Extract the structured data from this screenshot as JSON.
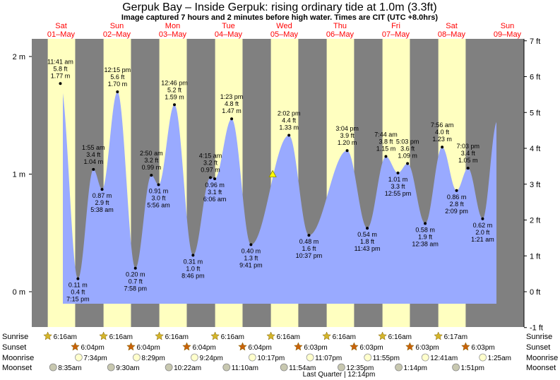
{
  "title": "Gerpuk Bay – Inside Gerpuk: rising  ordinary tide at 1.0m (3.3ft)",
  "subtitle": "Image captured 7 hours and 2 minutes before high water. Times are CIT (UTC +8.0hrs)",
  "colors": {
    "day": "#ffffc0",
    "night": "#808080",
    "tide": "#99aaff",
    "day_label": "#ff0000"
  },
  "chart_data": {
    "type": "area",
    "ylim_m": [
      -0.2,
      2.1
    ],
    "left_axis": {
      "unit": "m",
      "ticks": [
        {
          "v": 0,
          "label": "0 m"
        },
        {
          "v": 1,
          "label": "1 m"
        },
        {
          "v": 2,
          "label": "2 m"
        }
      ]
    },
    "right_axis": {
      "unit": "ft",
      "ticks": [
        "-1 ft",
        "0 ft",
        "1 ft",
        "2 ft",
        "3 ft",
        "4 ft",
        "5 ft",
        "6 ft",
        "7 ft"
      ]
    },
    "days": [
      {
        "dow": "Sat",
        "date": "01–May"
      },
      {
        "dow": "Sun",
        "date": "02–May"
      },
      {
        "dow": "Mon",
        "date": "03–May"
      },
      {
        "dow": "Tue",
        "date": "04–May"
      },
      {
        "dow": "Wed",
        "date": "05–May"
      },
      {
        "dow": "Thu",
        "date": "06–May"
      },
      {
        "dow": "Fri",
        "date": "07–May"
      },
      {
        "dow": "Sat",
        "date": "08–May"
      },
      {
        "dow": "Sun",
        "date": "09–May"
      }
    ],
    "extremes": [
      {
        "type": "high",
        "time": "11:41 am",
        "ft": "5.8 ft",
        "m": "1.77 m",
        "h": 1.77,
        "day": 0
      },
      {
        "type": "low",
        "time": "7:15 pm",
        "ft": "0.4 ft",
        "m": "0.11 m",
        "h": 0.11,
        "day": 0
      },
      {
        "type": "high",
        "time": "1:55 am",
        "ft": "3.4 ft",
        "m": "1.04 m",
        "h": 1.04,
        "day": 1
      },
      {
        "type": "low",
        "time": "5:38 am",
        "ft": "2.9 ft",
        "m": "0.87 m",
        "h": 0.87,
        "day": 1
      },
      {
        "type": "high",
        "time": "12:15 pm",
        "ft": "5.6 ft",
        "m": "1.70 m",
        "h": 1.7,
        "day": 1
      },
      {
        "type": "low",
        "time": "7:58 pm",
        "ft": "0.7 ft",
        "m": "0.20 m",
        "h": 0.2,
        "day": 1
      },
      {
        "type": "high",
        "time": "2:50 am",
        "ft": "3.2 ft",
        "m": "0.99 m",
        "h": 0.99,
        "day": 2
      },
      {
        "type": "low",
        "time": "5:56 am",
        "ft": "3.0 ft",
        "m": "0.91 m",
        "h": 0.91,
        "day": 2
      },
      {
        "type": "high",
        "time": "12:46 pm",
        "ft": "5.2 ft",
        "m": "1.59 m",
        "h": 1.59,
        "day": 2
      },
      {
        "type": "low",
        "time": "8:46 pm",
        "ft": "1.0 ft",
        "m": "0.31 m",
        "h": 0.31,
        "day": 2
      },
      {
        "type": "high",
        "time": "4:15 am",
        "ft": "3.2 ft",
        "m": "0.97 m",
        "h": 0.97,
        "day": 3
      },
      {
        "type": "low",
        "time": "6:06 am",
        "ft": "3.1 ft",
        "m": "0.96 m",
        "h": 0.96,
        "day": 3
      },
      {
        "type": "high",
        "time": "1:23 pm",
        "ft": "4.8 ft",
        "m": "1.47 m",
        "h": 1.47,
        "day": 3
      },
      {
        "type": "low",
        "time": "9:41 pm",
        "ft": "1.3 ft",
        "m": "0.40 m",
        "h": 0.4,
        "day": 3
      },
      {
        "type": "high",
        "time": "2:02 pm",
        "ft": "4.4 ft",
        "m": "1.33 m",
        "h": 1.33,
        "day": 4
      },
      {
        "type": "low",
        "time": "10:37 pm",
        "ft": "1.6 ft",
        "m": "0.48 m",
        "h": 0.48,
        "day": 4
      },
      {
        "type": "high",
        "time": "3:04 pm",
        "ft": "3.9 ft",
        "m": "1.20 m",
        "h": 1.2,
        "day": 5
      },
      {
        "type": "low",
        "time": "11:43 pm",
        "ft": "1.8 ft",
        "m": "0.54 m",
        "h": 0.54,
        "day": 5
      },
      {
        "type": "high",
        "time": "7:44 am",
        "ft": "3.8 ft",
        "m": "1.15 m",
        "h": 1.15,
        "day": 6
      },
      {
        "type": "low",
        "time": "12:55 pm",
        "ft": "3.3 ft",
        "m": "1.01 m",
        "h": 1.01,
        "day": 6
      },
      {
        "type": "high",
        "time": "5:03 pm",
        "ft": "3.6 ft",
        "m": "1.09 m",
        "h": 1.09,
        "day": 6
      },
      {
        "type": "low",
        "time": "12:38 am",
        "ft": "1.9 ft",
        "m": "0.58 m",
        "h": 0.58,
        "day": 7
      },
      {
        "type": "high",
        "time": "7:56 am",
        "ft": "4.0 ft",
        "m": "1.23 m",
        "h": 1.23,
        "day": 7
      },
      {
        "type": "low",
        "time": "2:09 pm",
        "ft": "2.8 ft",
        "m": "0.86 m",
        "h": 0.86,
        "day": 7
      },
      {
        "type": "high",
        "time": "7:03 pm",
        "ft": "3.4 ft",
        "m": "1.05 m",
        "h": 1.05,
        "day": 7
      },
      {
        "type": "low",
        "time": "1:21 am",
        "ft": "2.0 ft",
        "m": "0.62 m",
        "h": 0.62,
        "day": 8
      }
    ],
    "current_tide_m": 1.0
  },
  "astro": {
    "row_labels": [
      "Sunrise",
      "Sunset",
      "Moonrise",
      "Moonset"
    ],
    "sunrise": [
      "6:16am",
      "6:16am",
      "6:16am",
      "6:16am",
      "6:16am",
      "6:16am",
      "6:16am",
      "6:17am"
    ],
    "sunset": [
      "6:04pm",
      "6:04pm",
      "6:04pm",
      "6:04pm",
      "6:03pm",
      "6:03pm",
      "6:03pm",
      "6:03pm"
    ],
    "moonrise": [
      "7:34pm",
      "8:29pm",
      "9:24pm",
      "10:17pm",
      "11:07pm",
      "11:55pm",
      "12:41am",
      "1:25am"
    ],
    "moonset": [
      "8:35am",
      "9:30am",
      "10:22am",
      "11:10am",
      "11:54am",
      "12:35pm",
      "1:14pm",
      "1:51pm"
    ],
    "moon_phase": "Last Quarter | 12:14pm"
  }
}
